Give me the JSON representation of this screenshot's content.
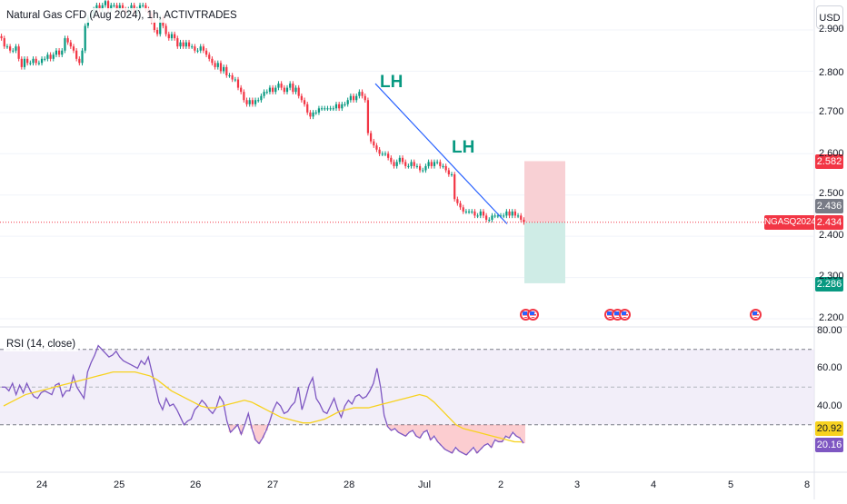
{
  "legend": {
    "title": "Natural Gas CFD (Aug 2024), 1h, ACTIVTRADES",
    "rsi_title": "RSI (14, close)"
  },
  "currency_button": "USD",
  "annotations": [
    "LH",
    "LH"
  ],
  "symbol_tag": "NGASQ2024",
  "price_tags": {
    "stop": "2.582",
    "pre_close": "2.436",
    "last": "2.434",
    "target": "2.286",
    "rsi_ma": "20.92",
    "rsi_value": "20.16"
  },
  "price_axis_ticks": [
    "2.900",
    "2.800",
    "2.700",
    "2.600",
    "2.500",
    "2.400",
    "2.300",
    "2.200"
  ],
  "rsi_axis_ticks": [
    "80.00",
    "60.00",
    "40.00"
  ],
  "time_axis_ticks": [
    "24",
    "25",
    "26",
    "27",
    "28",
    "Jul",
    "2",
    "3",
    "4",
    "5",
    "8"
  ],
  "event_icon_names": [
    "us-flag-event-icon"
  ],
  "colors": {
    "up": "#089981",
    "down": "#f23645",
    "trendline": "#2962ff",
    "rsi_line": "#7e57c2",
    "rsi_ma_line": "#f7d21f",
    "stop_zone": "#f8d0d4",
    "target_zone": "#cfece6",
    "rsi_band": "#ede7f6"
  },
  "chart_data": [
    {
      "type": "candlestick",
      "title": "Natural Gas CFD (Aug 2024), 1h, ACTIVTRADES",
      "x_labels": [
        "24",
        "25",
        "26",
        "27",
        "28",
        "Jul",
        "2",
        "3",
        "4",
        "5",
        "8"
      ],
      "ylim": [
        2.18,
        2.98
      ],
      "y_scale": "linear",
      "grid": "horizontal",
      "last_price": 2.434,
      "close_series": [
        2.88,
        2.86,
        2.86,
        2.85,
        2.85,
        2.86,
        2.83,
        2.81,
        2.83,
        2.82,
        2.82,
        2.83,
        2.82,
        2.82,
        2.83,
        2.83,
        2.84,
        2.83,
        2.84,
        2.85,
        2.84,
        2.85,
        2.88,
        2.87,
        2.86,
        2.85,
        2.83,
        2.82,
        2.85,
        2.91,
        2.93,
        2.94,
        2.95,
        2.96,
        2.95,
        2.96,
        2.97,
        2.95,
        2.96,
        2.96,
        2.95,
        2.96,
        2.95,
        2.94,
        2.95,
        2.96,
        2.94,
        2.95,
        2.96,
        2.96,
        2.95,
        2.94,
        2.92,
        2.9,
        2.89,
        2.93,
        2.91,
        2.89,
        2.88,
        2.89,
        2.88,
        2.86,
        2.87,
        2.86,
        2.87,
        2.86,
        2.86,
        2.85,
        2.85,
        2.86,
        2.85,
        2.84,
        2.83,
        2.82,
        2.81,
        2.82,
        2.8,
        2.81,
        2.79,
        2.79,
        2.78,
        2.78,
        2.76,
        2.75,
        2.73,
        2.72,
        2.73,
        2.72,
        2.73,
        2.73,
        2.74,
        2.75,
        2.75,
        2.76,
        2.75,
        2.76,
        2.77,
        2.76,
        2.75,
        2.76,
        2.77,
        2.75,
        2.76,
        2.74,
        2.73,
        2.72,
        2.7,
        2.69,
        2.7,
        2.7,
        2.71,
        2.71,
        2.71,
        2.71,
        2.71,
        2.71,
        2.72,
        2.71,
        2.72,
        2.72,
        2.73,
        2.74,
        2.73,
        2.74,
        2.75,
        2.74,
        2.73,
        2.65,
        2.63,
        2.62,
        2.61,
        2.6,
        2.6,
        2.6,
        2.59,
        2.58,
        2.57,
        2.58,
        2.59,
        2.58,
        2.57,
        2.57,
        2.58,
        2.57,
        2.57,
        2.56,
        2.56,
        2.57,
        2.58,
        2.57,
        2.58,
        2.58,
        2.57,
        2.57,
        2.56,
        2.55,
        2.55,
        2.49,
        2.48,
        2.47,
        2.46,
        2.46,
        2.46,
        2.46,
        2.45,
        2.45,
        2.46,
        2.45,
        2.44,
        2.44,
        2.45,
        2.45,
        2.45,
        2.45,
        2.45,
        2.46,
        2.45,
        2.46,
        2.45,
        2.45,
        2.44,
        2.434
      ],
      "trendline": {
        "from": 2.77,
        "to": 2.43
      },
      "position": {
        "stop": 2.582,
        "entry": 2.434,
        "target": 2.286
      }
    },
    {
      "type": "line",
      "title": "RSI (14, close)",
      "ylim": [
        0,
        85
      ],
      "bands": [
        70,
        50,
        30
      ],
      "series": [
        {
          "name": "RSI (14, close)",
          "values": [
            50,
            50,
            48,
            52,
            46,
            51,
            47,
            52,
            48,
            45,
            44,
            47,
            48,
            47,
            46,
            51,
            52,
            45,
            48,
            48,
            56,
            50,
            47,
            44,
            58,
            63,
            67,
            72,
            70,
            68,
            66,
            67,
            69,
            66,
            64,
            63,
            62,
            61,
            60,
            64,
            62,
            66,
            58,
            50,
            42,
            38,
            44,
            40,
            41,
            38,
            34,
            30,
            32,
            33,
            38,
            40,
            43,
            41,
            38,
            36,
            39,
            45,
            42,
            32,
            26,
            28,
            30,
            25,
            30,
            36,
            28,
            22,
            20,
            23,
            27,
            32,
            38,
            42,
            40,
            36,
            37,
            40,
            42,
            50,
            38,
            44,
            51,
            55,
            44,
            41,
            37,
            36,
            40,
            44,
            38,
            34,
            40,
            43,
            41,
            45,
            46,
            44,
            45,
            48,
            52,
            60,
            50,
            35,
            29,
            27,
            28,
            26,
            25,
            24,
            26,
            27,
            24,
            23,
            26,
            27,
            22,
            24,
            21,
            19,
            17,
            16,
            15,
            18,
            16,
            15,
            14,
            16,
            18,
            15,
            17,
            19,
            20,
            18,
            22,
            21,
            21,
            24,
            23,
            26,
            24,
            23,
            20.16
          ]
        },
        {
          "name": "RSI MA",
          "values": [
            40,
            42,
            44,
            46,
            47,
            48,
            49,
            50,
            51,
            52,
            53,
            54,
            55,
            56,
            57,
            58,
            58,
            58,
            58,
            57,
            56,
            54,
            51,
            48,
            46,
            44,
            42,
            40,
            39,
            39,
            40,
            41,
            42,
            43,
            42,
            40,
            38,
            36,
            34,
            33,
            32,
            31,
            31,
            32,
            33,
            35,
            37,
            38,
            39,
            39,
            39,
            40,
            41,
            42,
            43,
            44,
            45,
            46,
            45,
            42,
            38,
            34,
            30,
            28,
            27,
            26,
            25,
            24,
            23,
            22,
            21,
            20.92
          ]
        }
      ],
      "last_value": 20.16,
      "last_ma_value": 20.92
    }
  ]
}
